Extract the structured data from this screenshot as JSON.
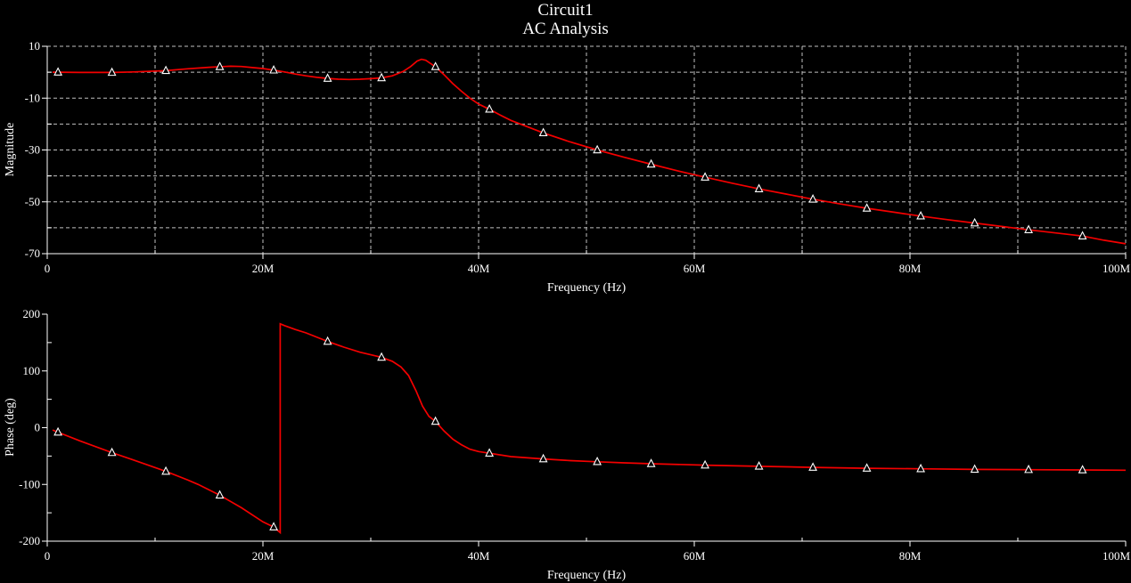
{
  "title": {
    "line1": "Circuit1",
    "line2": "AC Analysis"
  },
  "colors": {
    "background": "#000000",
    "text": "#ffffff",
    "axis": "#ffffff",
    "grid": "#c0c0c0",
    "trace": "#f40000",
    "marker_outline": "#ffffff",
    "marker_fill": "#000000"
  },
  "chart_data": [
    {
      "type": "line",
      "name": "magnitude-plot",
      "xlabel": "Frequency (Hz)",
      "ylabel": "Magnitude",
      "x_unit": "MHz",
      "xlim": [
        0,
        100
      ],
      "ylim": [
        -70,
        10
      ],
      "grid": true,
      "legend": "none",
      "x_major_ticks": [
        {
          "v": 0,
          "label": "0"
        },
        {
          "v": 20,
          "label": "20M"
        },
        {
          "v": 40,
          "label": "40M"
        },
        {
          "v": 60,
          "label": "60M"
        },
        {
          "v": 80,
          "label": "80M"
        },
        {
          "v": 100,
          "label": "100M"
        }
      ],
      "x_minor_ticks": [
        10,
        30,
        50,
        70,
        90
      ],
      "y_major_ticks": [
        {
          "v": 10,
          "label": "10"
        },
        {
          "v": -10,
          "label": "-10"
        },
        {
          "v": -30,
          "label": "-30"
        },
        {
          "v": -50,
          "label": "-50"
        },
        {
          "v": -70,
          "label": "-70"
        }
      ],
      "y_minor_ticks": [
        0,
        -20,
        -40,
        -60
      ],
      "x_gridlines": [
        10,
        20,
        30,
        40,
        50,
        60,
        70,
        80,
        90,
        100
      ],
      "y_gridlines": [
        10,
        0,
        -10,
        -20,
        -30,
        -40,
        -50,
        -60
      ],
      "series": [
        {
          "name": "ac-magnitude",
          "points": [
            [
              0.5,
              0
            ],
            [
              1,
              0
            ],
            [
              3,
              -0.1
            ],
            [
              6,
              -0.1
            ],
            [
              8,
              0.1
            ],
            [
              11,
              0.6
            ],
            [
              13,
              1.3
            ],
            [
              15,
              1.9
            ],
            [
              16,
              2.1
            ],
            [
              17,
              2.3
            ],
            [
              18,
              2.2
            ],
            [
              19,
              1.8
            ],
            [
              20,
              1.4
            ],
            [
              21,
              0.8
            ],
            [
              22,
              0.1
            ],
            [
              23,
              -0.7
            ],
            [
              24,
              -1.4
            ],
            [
              25,
              -2.0
            ],
            [
              26,
              -2.4
            ],
            [
              27,
              -2.7
            ],
            [
              28,
              -2.8
            ],
            [
              29,
              -2.7
            ],
            [
              30,
              -2.5
            ],
            [
              31,
              -2.2
            ],
            [
              32,
              -1.4
            ],
            [
              33,
              0.3
            ],
            [
              33.7,
              2.2
            ],
            [
              34.3,
              4.3
            ],
            [
              34.7,
              5.0
            ],
            [
              35.1,
              4.6
            ],
            [
              35.5,
              3.5
            ],
            [
              36,
              2.1
            ],
            [
              36.8,
              -1.0
            ],
            [
              37.6,
              -4.4
            ],
            [
              38.4,
              -7.3
            ],
            [
              39.2,
              -10.0
            ],
            [
              40,
              -12.3
            ],
            [
              41,
              -14.3
            ],
            [
              42,
              -16.5
            ],
            [
              43,
              -18.6
            ],
            [
              44.5,
              -21.0
            ],
            [
              46,
              -23.4
            ],
            [
              48.5,
              -26.9
            ],
            [
              51,
              -30.0
            ],
            [
              53.5,
              -32.8
            ],
            [
              56,
              -35.5
            ],
            [
              58.5,
              -38.1
            ],
            [
              61,
              -40.5
            ],
            [
              63.5,
              -42.8
            ],
            [
              66,
              -45.0
            ],
            [
              68.5,
              -47.0
            ],
            [
              71,
              -49.0
            ],
            [
              73.5,
              -50.8
            ],
            [
              76,
              -52.5
            ],
            [
              78.5,
              -54.0
            ],
            [
              81,
              -55.5
            ],
            [
              83.5,
              -56.9
            ],
            [
              86,
              -58.2
            ],
            [
              88.5,
              -59.5
            ],
            [
              91,
              -60.8
            ],
            [
              93.5,
              -62.0
            ],
            [
              96,
              -63.2
            ],
            [
              98,
              -64.8
            ],
            [
              100,
              -66.2
            ]
          ]
        }
      ],
      "markers": [
        [
          1,
          0
        ],
        [
          6,
          -0.1
        ],
        [
          11,
          0.6
        ],
        [
          16,
          2.1
        ],
        [
          21,
          0.8
        ],
        [
          26,
          -2.4
        ],
        [
          31,
          -2.2
        ],
        [
          36,
          2.1
        ],
        [
          41,
          -14.3
        ],
        [
          46,
          -23.4
        ],
        [
          51,
          -30
        ],
        [
          56,
          -35.5
        ],
        [
          61,
          -40.5
        ],
        [
          66,
          -45
        ],
        [
          71,
          -49
        ],
        [
          76,
          -52.5
        ],
        [
          81,
          -55.5
        ],
        [
          86,
          -58.2
        ],
        [
          91,
          -60.8
        ],
        [
          96,
          -63.2
        ]
      ]
    },
    {
      "type": "line",
      "name": "phase-plot",
      "xlabel": "Frequency (Hz)",
      "ylabel": "Phase (deg)",
      "x_unit": "MHz",
      "xlim": [
        0,
        100
      ],
      "ylim": [
        -200,
        200
      ],
      "grid": false,
      "legend": "none",
      "x_major_ticks": [
        {
          "v": 0,
          "label": "0"
        },
        {
          "v": 20,
          "label": "20M"
        },
        {
          "v": 40,
          "label": "40M"
        },
        {
          "v": 60,
          "label": "60M"
        },
        {
          "v": 80,
          "label": "80M"
        },
        {
          "v": 100,
          "label": "100M"
        }
      ],
      "x_minor_ticks": [
        10,
        30,
        50,
        70,
        90
      ],
      "y_major_ticks": [
        {
          "v": 200,
          "label": "200"
        },
        {
          "v": 100,
          "label": "100"
        },
        {
          "v": 0,
          "label": "0"
        },
        {
          "v": -100,
          "label": "-100"
        },
        {
          "v": -200,
          "label": "-200"
        }
      ],
      "y_minor_ticks": [
        150,
        50,
        -50,
        -150
      ],
      "x_gridlines": [],
      "y_gridlines": [],
      "series": [
        {
          "name": "ac-phase",
          "points": [
            [
              0.5,
              -4
            ],
            [
              1,
              -8
            ],
            [
              3,
              -23
            ],
            [
              6,
              -44
            ],
            [
              8,
              -57
            ],
            [
              11,
              -77
            ],
            [
              13,
              -92
            ],
            [
              14,
              -100
            ],
            [
              16,
              -119
            ],
            [
              18,
              -141
            ],
            [
              20,
              -166
            ],
            [
              21,
              -175
            ],
            [
              21.6,
              -185
            ],
            [
              21.6,
              183
            ],
            [
              22,
              180
            ],
            [
              23,
              173
            ],
            [
              24,
              167
            ],
            [
              26,
              152
            ],
            [
              27.5,
              142
            ],
            [
              29,
              133
            ],
            [
              31,
              124
            ],
            [
              32,
              117
            ],
            [
              32.8,
              107
            ],
            [
              33.5,
              92
            ],
            [
              34.2,
              65
            ],
            [
              34.8,
              38
            ],
            [
              35.4,
              20
            ],
            [
              36,
              11
            ],
            [
              36.8,
              -6
            ],
            [
              37.6,
              -20
            ],
            [
              38.4,
              -30
            ],
            [
              39.2,
              -38
            ],
            [
              40,
              -42
            ],
            [
              41,
              -45
            ],
            [
              43,
              -51
            ],
            [
              46,
              -55
            ],
            [
              48.5,
              -58
            ],
            [
              51,
              -60
            ],
            [
              53.5,
              -62
            ],
            [
              56,
              -63.5
            ],
            [
              61,
              -66
            ],
            [
              66,
              -68
            ],
            [
              71,
              -70
            ],
            [
              76,
              -71.5
            ],
            [
              81,
              -72.5
            ],
            [
              86,
              -73.5
            ],
            [
              91,
              -74
            ],
            [
              96,
              -74.5
            ],
            [
              100,
              -75
            ]
          ]
        }
      ],
      "markers": [
        [
          1,
          -8
        ],
        [
          6,
          -44
        ],
        [
          11,
          -77
        ],
        [
          16,
          -119
        ],
        [
          21,
          -175
        ],
        [
          26,
          152
        ],
        [
          31,
          124
        ],
        [
          36,
          11
        ],
        [
          41,
          -45
        ],
        [
          46,
          -55
        ],
        [
          51,
          -60
        ],
        [
          56,
          -63.5
        ],
        [
          61,
          -66
        ],
        [
          66,
          -68
        ],
        [
          71,
          -70
        ],
        [
          76,
          -71.5
        ],
        [
          81,
          -72.5
        ],
        [
          86,
          -73.5
        ],
        [
          91,
          -74
        ],
        [
          96,
          -74.5
        ]
      ]
    }
  ]
}
